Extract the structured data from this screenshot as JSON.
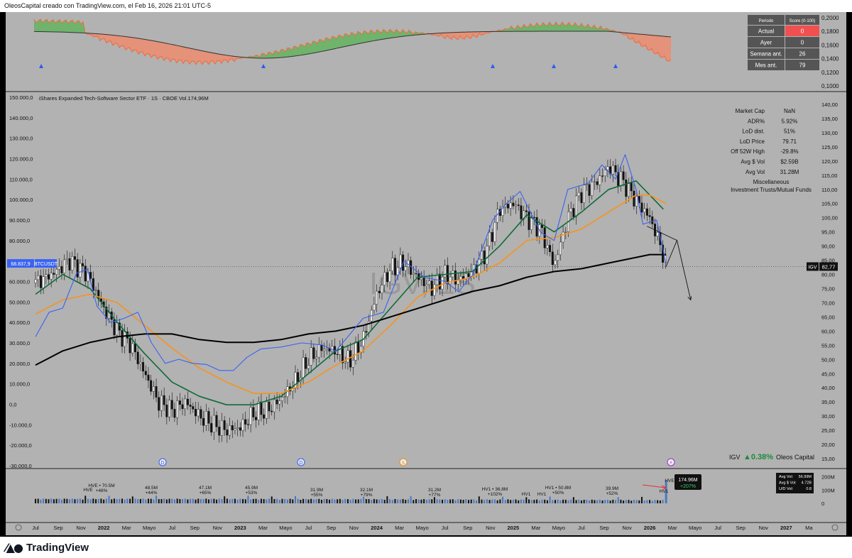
{
  "header": {
    "text": "OleosCapital creado con TradingView.com, el Feb 16, 2026 21:01 UTC-5"
  },
  "footer": {
    "brand": "TradingView",
    "brand_icon": "tradingview-logo-icon"
  },
  "colors": {
    "bg": "#b2b2b2",
    "green_ma": "#0e6b3a",
    "orange_ma": "#f7931a",
    "black_ma": "#000000",
    "blue_line": "#3a63f2",
    "score_red": "#f05050"
  },
  "score_table": {
    "headers": [
      "Periodo",
      "Score (0-100)"
    ],
    "rows": [
      {
        "label": "Actual",
        "value": "0"
      },
      {
        "label": "Ayer",
        "value": "0"
      },
      {
        "label": "Semana ant.",
        "value": "26"
      },
      {
        "label": "Mes ant.",
        "value": "79"
      }
    ]
  },
  "indicator_axis": [
    "0,2000",
    "0,1800",
    "0,1600",
    "0,1400",
    "0,1200",
    "0,1000"
  ],
  "main_title": "iShares Expanded Tech-Software Sector ETF · 1S · CBOE  Vol.174,96M",
  "watermark": "IGV, 1S",
  "left_axis": [
    "150.000,0",
    "140.000,0",
    "130.000,0",
    "120.000,0",
    "110.000,0",
    "100.000,0",
    "90.000,0",
    "80.000,0",
    "70.000,0",
    "60.000,0",
    "50.000,0",
    "40.000,0",
    "30.000,0",
    "20.000,0",
    "10.000,0",
    "0,0",
    "-10.000,0",
    "-20.000,0",
    "-30.000,0"
  ],
  "right_axis": [
    "140,00",
    "135,00",
    "130,00",
    "125,00",
    "120,00",
    "115,00",
    "110,00",
    "105,00",
    "100,00",
    "95,00",
    "90,00",
    "85,00",
    "80,00",
    "75,00",
    "70,00",
    "65,00",
    "60,00",
    "55,00",
    "50,00",
    "45,00",
    "40,00",
    "35,00",
    "30,00",
    "25,00",
    "20,00",
    "15,00"
  ],
  "btc_label": {
    "value": "68.837,9",
    "symbol": "BTCUSDT"
  },
  "igv_label": {
    "symbol": "IGV",
    "value": "82,77"
  },
  "info_table": [
    {
      "label": "Market Cap",
      "value": "NaN"
    },
    {
      "label": "ADR%",
      "value": "5.92%"
    },
    {
      "label": "LoD dist.",
      "value": "51%"
    },
    {
      "label": "LoD Price",
      "value": "79.71"
    },
    {
      "label": "Off 52W High",
      "value": "-29.8%"
    },
    {
      "label": "Avg $ Vol",
      "value": "$2.59B"
    },
    {
      "label": "Avg Vol",
      "value": "31.28M"
    }
  ],
  "info_sector": "Miscellaneous",
  "info_industry": "Investment Trusts/Mutual Funds",
  "bottom_label": {
    "symbol": "IGV",
    "change": "▲0.38%",
    "author": "Oleos Capital"
  },
  "event_markers": [
    {
      "letter": "D",
      "x_month": "Jan 2022"
    },
    {
      "letter": "D",
      "x_month": "Jan 2023"
    },
    {
      "letter": "$",
      "x_month": "Jul 2023"
    },
    {
      "letter": "⚡",
      "x_month": "Jan 2026"
    }
  ],
  "volume_annotations": [
    {
      "text": "HVE",
      "sub": ""
    },
    {
      "text": "HVE • 70.5M",
      "sub": "+48%"
    },
    {
      "text": "48.5M",
      "sub": "+44%"
    },
    {
      "text": "47.1M",
      "sub": "+65%"
    },
    {
      "text": "45.9M",
      "sub": "+53%"
    },
    {
      "text": "31.9M",
      "sub": "+55%"
    },
    {
      "text": "32.1M",
      "sub": "+79%"
    },
    {
      "text": "31.2M",
      "sub": "+77%"
    },
    {
      "text": "HV1 • 36.8M",
      "sub": "+102%"
    },
    {
      "text": "HV1",
      "sub": ""
    },
    {
      "text": "HV1 • 50.8M",
      "sub": "+50%"
    },
    {
      "text": "HV1",
      "sub": ""
    },
    {
      "text": "39.9M",
      "sub": "+52%"
    },
    {
      "text": "HV1",
      "sub": ""
    },
    {
      "text": "HVE",
      "sub": ""
    }
  ],
  "volume_badge": {
    "value": "174.96M",
    "change": "+207%"
  },
  "volume_axis": [
    "200M",
    "100M",
    "0"
  ],
  "volume_stats": [
    {
      "label": "Avg Vol:",
      "value": "56.99M"
    },
    {
      "label": "Avg $ Vol:",
      "value": "4.72B"
    },
    {
      "label": "U/D Vol:",
      "value": "0.8"
    }
  ],
  "x_axis": [
    "Jul",
    "Sep",
    "Nov",
    "2022",
    "Mar",
    "Mayo",
    "Jul",
    "Sep",
    "Nov",
    "2023",
    "Mar",
    "Mayo",
    "Jul",
    "Sep",
    "Nov",
    "2024",
    "Mar",
    "Mayo",
    "Jul",
    "Sep",
    "Nov",
    "2025",
    "Mar",
    "Mayo",
    "Jul",
    "Sep",
    "Nov",
    "2026",
    "Mar",
    "Mayo",
    "Jul",
    "Sep",
    "Nov",
    "2027",
    "Ma"
  ],
  "chart_data": {
    "type": "line",
    "title": "iShares Expanded Tech-Software Sector ETF · 1S · CBOE",
    "xlabel": "",
    "ylabel": "",
    "ylim_right": [
      12.5,
      142.5
    ],
    "ylim_left": [
      -30000,
      150000
    ],
    "grid": false,
    "series": [
      {
        "name": "IGV",
        "axis": "right",
        "color": "#000000",
        "values": [
          [
            2021.5,
            77
          ],
          [
            2021.62,
            80
          ],
          [
            2021.75,
            85
          ],
          [
            2021.88,
            80
          ],
          [
            2022.0,
            68
          ],
          [
            2022.1,
            60
          ],
          [
            2022.2,
            55
          ],
          [
            2022.3,
            45
          ],
          [
            2022.4,
            35
          ],
          [
            2022.5,
            32
          ],
          [
            2022.6,
            35
          ],
          [
            2022.7,
            30
          ],
          [
            2022.8,
            27
          ],
          [
            2022.9,
            25
          ],
          [
            2023.0,
            26
          ],
          [
            2023.1,
            31
          ],
          [
            2023.2,
            32
          ],
          [
            2023.3,
            36
          ],
          [
            2023.4,
            42
          ],
          [
            2023.5,
            50
          ],
          [
            2023.6,
            54
          ],
          [
            2023.7,
            53
          ],
          [
            2023.8,
            49
          ],
          [
            2023.9,
            57
          ],
          [
            2024.0,
            73
          ],
          [
            2024.1,
            82
          ],
          [
            2024.2,
            84
          ],
          [
            2024.3,
            79
          ],
          [
            2024.4,
            75
          ],
          [
            2024.5,
            80
          ],
          [
            2024.6,
            78
          ],
          [
            2024.7,
            81
          ],
          [
            2024.8,
            88
          ],
          [
            2024.9,
            103
          ],
          [
            2025.0,
            105
          ],
          [
            2025.1,
            100
          ],
          [
            2025.2,
            96
          ],
          [
            2025.3,
            83
          ],
          [
            2025.4,
            100
          ],
          [
            2025.5,
            109
          ],
          [
            2025.6,
            112
          ],
          [
            2025.7,
            118
          ],
          [
            2025.8,
            113
          ],
          [
            2025.9,
            106
          ],
          [
            2026.0,
            100
          ],
          [
            2026.08,
            90
          ],
          [
            2026.12,
            82.77
          ]
        ]
      },
      {
        "name": "",
        "axis": "right",
        "color": "#0e6b3a",
        "values": [
          [
            2021.5,
            73
          ],
          [
            2021.7,
            80
          ],
          [
            2021.9,
            75
          ],
          [
            2022.1,
            63
          ],
          [
            2022.3,
            52
          ],
          [
            2022.5,
            42
          ],
          [
            2022.7,
            37
          ],
          [
            2022.9,
            34
          ],
          [
            2023.1,
            34
          ],
          [
            2023.3,
            37
          ],
          [
            2023.5,
            45
          ],
          [
            2023.7,
            53
          ],
          [
            2023.9,
            57
          ],
          [
            2024.1,
            68
          ],
          [
            2024.3,
            79
          ],
          [
            2024.5,
            80
          ],
          [
            2024.7,
            81
          ],
          [
            2024.9,
            90
          ],
          [
            2025.1,
            101
          ],
          [
            2025.3,
            95
          ],
          [
            2025.5,
            102
          ],
          [
            2025.7,
            110
          ],
          [
            2025.9,
            113
          ],
          [
            2026.0,
            108
          ],
          [
            2026.1,
            103
          ]
        ]
      },
      {
        "name": "",
        "axis": "right",
        "color": "#f7931a",
        "values": [
          [
            2021.5,
            66
          ],
          [
            2021.7,
            71
          ],
          [
            2021.9,
            73
          ],
          [
            2022.1,
            70
          ],
          [
            2022.3,
            62
          ],
          [
            2022.5,
            54
          ],
          [
            2022.7,
            47
          ],
          [
            2022.9,
            42
          ],
          [
            2023.1,
            38
          ],
          [
            2023.3,
            38
          ],
          [
            2023.5,
            42
          ],
          [
            2023.7,
            48
          ],
          [
            2023.9,
            53
          ],
          [
            2024.1,
            62
          ],
          [
            2024.3,
            72
          ],
          [
            2024.5,
            77
          ],
          [
            2024.7,
            79
          ],
          [
            2024.9,
            84
          ],
          [
            2025.1,
            92
          ],
          [
            2025.3,
            93
          ],
          [
            2025.5,
            96
          ],
          [
            2025.7,
            102
          ],
          [
            2025.9,
            108
          ],
          [
            2026.0,
            108
          ],
          [
            2026.12,
            105
          ]
        ]
      },
      {
        "name": "",
        "axis": "right",
        "color": "#000000",
        "values": [
          [
            2021.5,
            48
          ],
          [
            2021.7,
            53
          ],
          [
            2021.9,
            56
          ],
          [
            2022.1,
            58
          ],
          [
            2022.3,
            59
          ],
          [
            2022.5,
            59
          ],
          [
            2022.7,
            57
          ],
          [
            2022.9,
            56
          ],
          [
            2023.1,
            56
          ],
          [
            2023.3,
            57
          ],
          [
            2023.5,
            59
          ],
          [
            2023.7,
            60
          ],
          [
            2023.9,
            62
          ],
          [
            2024.1,
            65
          ],
          [
            2024.3,
            68
          ],
          [
            2024.5,
            71
          ],
          [
            2024.7,
            74
          ],
          [
            2024.9,
            76
          ],
          [
            2025.1,
            79
          ],
          [
            2025.3,
            81
          ],
          [
            2025.5,
            82
          ],
          [
            2025.7,
            84
          ],
          [
            2025.9,
            86
          ],
          [
            2026.0,
            87
          ],
          [
            2026.12,
            87
          ]
        ]
      },
      {
        "name": "BTCUSDT",
        "axis": "left",
        "color": "#3a63f2",
        "values": [
          [
            2021.5,
            33000
          ],
          [
            2021.6,
            45000
          ],
          [
            2021.7,
            47000
          ],
          [
            2021.8,
            64000
          ],
          [
            2021.88,
            66000
          ],
          [
            2021.95,
            48000
          ],
          [
            2022.05,
            40000
          ],
          [
            2022.15,
            42000
          ],
          [
            2022.25,
            45000
          ],
          [
            2022.35,
            30000
          ],
          [
            2022.45,
            20000
          ],
          [
            2022.55,
            22000
          ],
          [
            2022.65,
            20000
          ],
          [
            2022.75,
            19500
          ],
          [
            2022.85,
            16500
          ],
          [
            2022.95,
            16500
          ],
          [
            2023.05,
            23000
          ],
          [
            2023.15,
            27000
          ],
          [
            2023.3,
            28000
          ],
          [
            2023.45,
            30000
          ],
          [
            2023.6,
            29000
          ],
          [
            2023.7,
            26000
          ],
          [
            2023.8,
            34000
          ],
          [
            2023.9,
            42000
          ],
          [
            2024.05,
            45000
          ],
          [
            2024.2,
            70000
          ],
          [
            2024.35,
            62000
          ],
          [
            2024.5,
            60000
          ],
          [
            2024.6,
            55000
          ],
          [
            2024.7,
            63000
          ],
          [
            2024.85,
            90000
          ],
          [
            2024.95,
            98000
          ],
          [
            2025.05,
            104000
          ],
          [
            2025.2,
            84000
          ],
          [
            2025.3,
            80000
          ],
          [
            2025.4,
            105000
          ],
          [
            2025.55,
            108000
          ],
          [
            2025.65,
            117000
          ],
          [
            2025.75,
            110000
          ],
          [
            2025.82,
            122000
          ],
          [
            2025.9,
            105000
          ],
          [
            2025.95,
            88000
          ],
          [
            2026.05,
            90000
          ],
          [
            2026.12,
            68837.9
          ]
        ]
      }
    ],
    "projection": [
      [
        2026.12,
        82.77
      ],
      [
        2026.2,
        92
      ],
      [
        2026.3,
        71
      ]
    ],
    "volume": {
      "ylim": [
        0,
        220
      ],
      "unit": "M",
      "last": 174.96
    }
  }
}
